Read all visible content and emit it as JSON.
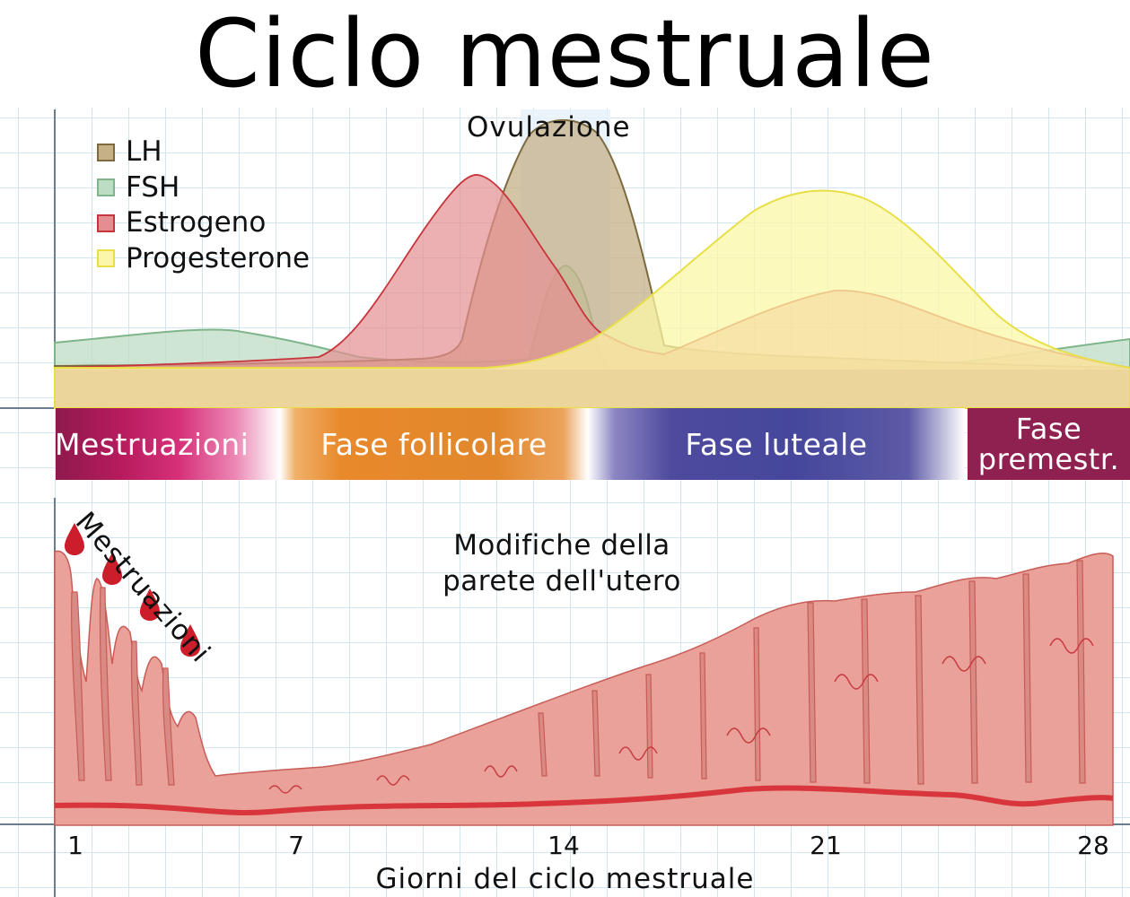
{
  "title": "Ciclo mestruale",
  "ovulation_label": "Ovulazione",
  "legend": [
    {
      "label": "LH",
      "fill": "#c5b088",
      "stroke": "#7d6a3e"
    },
    {
      "label": "FSH",
      "fill": "#bcdcc3",
      "stroke": "#7fb58b"
    },
    {
      "label": "Estrogeno",
      "fill": "#e58e92",
      "stroke": "#c7343b"
    },
    {
      "label": "Progesterone",
      "fill": "#fbf7a6",
      "stroke": "#e8df47"
    }
  ],
  "phases": [
    {
      "label": "Mestruazioni"
    },
    {
      "label": "Fase follicolare"
    },
    {
      "label": "Fase luteale"
    },
    {
      "label_line1": "Fase",
      "label_line2": "premestr."
    }
  ],
  "uterus": {
    "label_line1": "Modifiche della",
    "label_line2": "parete dell'utero",
    "menstruation_label": "Mestruazioni"
  },
  "x_axis": {
    "label": "Giorni del ciclo mestruale",
    "ticks": [
      "1",
      "7",
      "14",
      "21",
      "28"
    ]
  },
  "colors": {
    "tissue": "#e9a199",
    "tissue_edge": "#c85c56",
    "vessel": "#d8363c",
    "blood": "#cc1e2a",
    "grid": "#d2e6f2"
  }
}
